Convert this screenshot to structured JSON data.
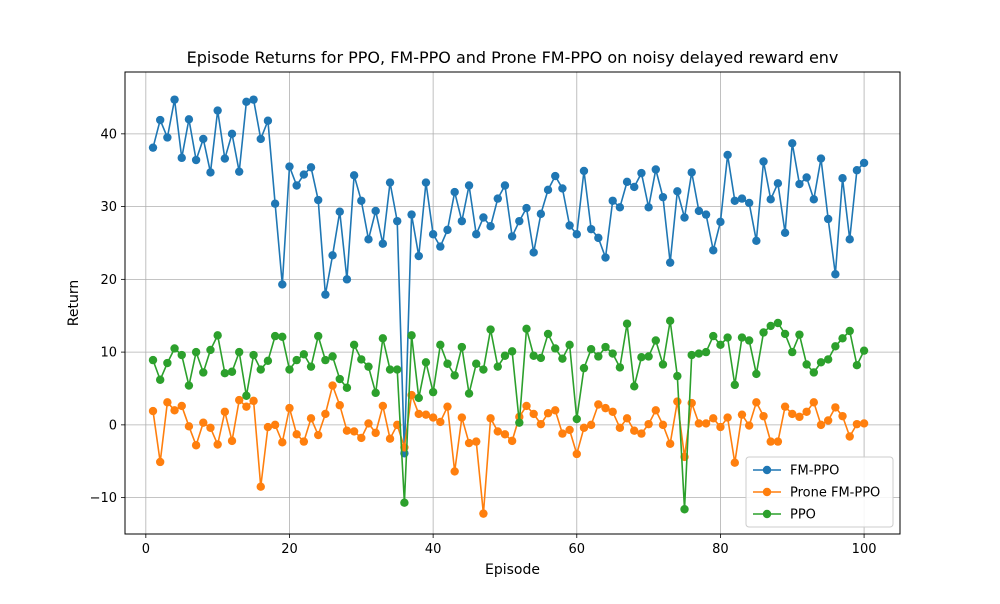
{
  "chart_data": {
    "type": "line",
    "title": "Episode Returns for PPO, FM-PPO and Prone FM-PPO on noisy delayed reward env",
    "xlabel": "Episode",
    "ylabel": "Return",
    "xlim": [
      -2.9,
      105.0
    ],
    "ylim": [
      -15,
      48.5
    ],
    "xticks": [
      0,
      20,
      40,
      60,
      80,
      100
    ],
    "xtick_labels": [
      "0",
      "20",
      "40",
      "60",
      "80",
      "100"
    ],
    "yticks": [
      -10,
      0,
      10,
      20,
      30,
      40
    ],
    "ytick_labels": [
      "−10",
      "0",
      "10",
      "20",
      "30",
      "40"
    ],
    "grid": true,
    "legend_position": "lower-right",
    "x": [
      1,
      2,
      3,
      4,
      5,
      6,
      7,
      8,
      9,
      10,
      11,
      12,
      13,
      14,
      15,
      16,
      17,
      18,
      19,
      20,
      21,
      22,
      23,
      24,
      25,
      26,
      27,
      28,
      29,
      30,
      31,
      32,
      33,
      34,
      35,
      36,
      37,
      38,
      39,
      40,
      41,
      42,
      43,
      44,
      45,
      46,
      47,
      48,
      49,
      50,
      51,
      52,
      53,
      54,
      55,
      56,
      57,
      58,
      59,
      60,
      61,
      62,
      63,
      64,
      65,
      66,
      67,
      68,
      69,
      70,
      71,
      72,
      73,
      74,
      75,
      76,
      77,
      78,
      79,
      80,
      81,
      82,
      83,
      84,
      85,
      86,
      87,
      88,
      89,
      90,
      91,
      92,
      93,
      94,
      95,
      96,
      97,
      98,
      99,
      100
    ],
    "series": [
      {
        "name": "FM-PPO",
        "color": "#1f77b4",
        "values": [
          38.1,
          41.9,
          39.5,
          44.7,
          36.7,
          42.0,
          36.4,
          39.3,
          34.7,
          43.2,
          36.6,
          40.0,
          34.8,
          44.4,
          44.7,
          39.3,
          41.8,
          30.4,
          19.3,
          35.5,
          32.9,
          34.4,
          35.4,
          30.9,
          17.9,
          23.3,
          29.3,
          20.0,
          34.3,
          30.8,
          25.5,
          29.4,
          24.9,
          33.3,
          28.0,
          -3.9,
          28.9,
          23.2,
          33.3,
          26.2,
          24.5,
          26.8,
          32.0,
          28.0,
          32.9,
          26.2,
          28.5,
          27.3,
          31.1,
          32.9,
          25.9,
          28.0,
          29.8,
          23.7,
          29.0,
          32.3,
          34.2,
          32.5,
          27.4,
          26.2,
          34.9,
          26.9,
          25.7,
          23.0,
          30.8,
          29.9,
          33.4,
          32.7,
          34.6,
          29.9,
          35.1,
          31.3,
          22.3,
          32.1,
          28.5,
          34.7,
          29.4,
          28.9,
          24.0,
          27.9,
          37.1,
          30.8,
          31.1,
          30.5,
          25.3,
          36.2,
          31.0,
          33.2,
          26.4,
          38.7,
          33.1,
          34.0,
          31.0,
          36.6,
          28.3,
          20.7,
          33.9,
          25.5,
          35.0,
          36.0
        ]
      },
      {
        "name": "Prone FM-PPO",
        "color": "#ff7f0e",
        "values": [
          1.9,
          -5.1,
          3.1,
          2.0,
          2.6,
          -0.2,
          -2.8,
          0.3,
          -0.4,
          -2.7,
          1.8,
          -2.2,
          3.4,
          2.5,
          3.3,
          -8.5,
          -0.3,
          0.0,
          -2.4,
          2.3,
          -1.3,
          -2.3,
          0.9,
          -1.4,
          1.5,
          5.4,
          2.7,
          -0.8,
          -0.9,
          -1.8,
          0.2,
          -1.1,
          2.6,
          -1.9,
          0.0,
          -3.1,
          4.1,
          1.5,
          1.4,
          1.0,
          0.4,
          2.5,
          -6.4,
          1.0,
          -2.5,
          -2.3,
          -12.2,
          0.9,
          -0.9,
          -1.3,
          -2.2,
          1.1,
          2.6,
          1.5,
          0.1,
          1.6,
          2.0,
          -1.2,
          -0.7,
          -4.0,
          -0.4,
          0.0,
          2.8,
          2.3,
          1.8,
          -0.4,
          0.9,
          -0.8,
          -1.2,
          0.1,
          2.0,
          0.0,
          -2.6,
          3.2,
          -4.4,
          3.0,
          0.2,
          0.2,
          0.9,
          -0.3,
          1.0,
          -5.2,
          1.4,
          -0.1,
          3.1,
          1.2,
          -2.3,
          -2.3,
          2.5,
          1.5,
          1.1,
          1.8,
          3.1,
          0.0,
          0.6,
          2.4,
          1.2,
          -1.6,
          0.1,
          0.2
        ]
      },
      {
        "name": "PPO",
        "color": "#2ca02c",
        "values": [
          8.9,
          6.2,
          8.5,
          10.5,
          9.6,
          5.4,
          10.0,
          7.2,
          10.3,
          12.3,
          7.1,
          7.3,
          10.0,
          4.0,
          9.6,
          7.6,
          8.8,
          12.2,
          12.1,
          7.6,
          8.9,
          9.7,
          8.0,
          12.2,
          8.9,
          9.4,
          6.3,
          5.1,
          11.0,
          9.0,
          8.0,
          4.4,
          11.9,
          7.6,
          7.6,
          -10.7,
          12.3,
          3.7,
          8.6,
          4.5,
          11.0,
          8.4,
          6.8,
          10.7,
          4.3,
          8.4,
          7.6,
          13.1,
          8.0,
          9.5,
          10.1,
          0.3,
          13.2,
          9.5,
          9.2,
          12.5,
          10.5,
          9.1,
          11.0,
          0.8,
          7.8,
          10.4,
          9.4,
          10.7,
          9.8,
          7.9,
          13.9,
          5.3,
          9.3,
          9.4,
          11.6,
          8.3,
          14.3,
          6.7,
          -11.6,
          9.6,
          9.8,
          10.0,
          12.2,
          11.0,
          12.0,
          5.5,
          12.0,
          11.6,
          7.0,
          12.7,
          13.6,
          14.0,
          12.5,
          10.0,
          12.4,
          8.3,
          7.2,
          8.6,
          9.0,
          10.8,
          11.9,
          12.9,
          8.2,
          10.2
        ]
      }
    ]
  }
}
